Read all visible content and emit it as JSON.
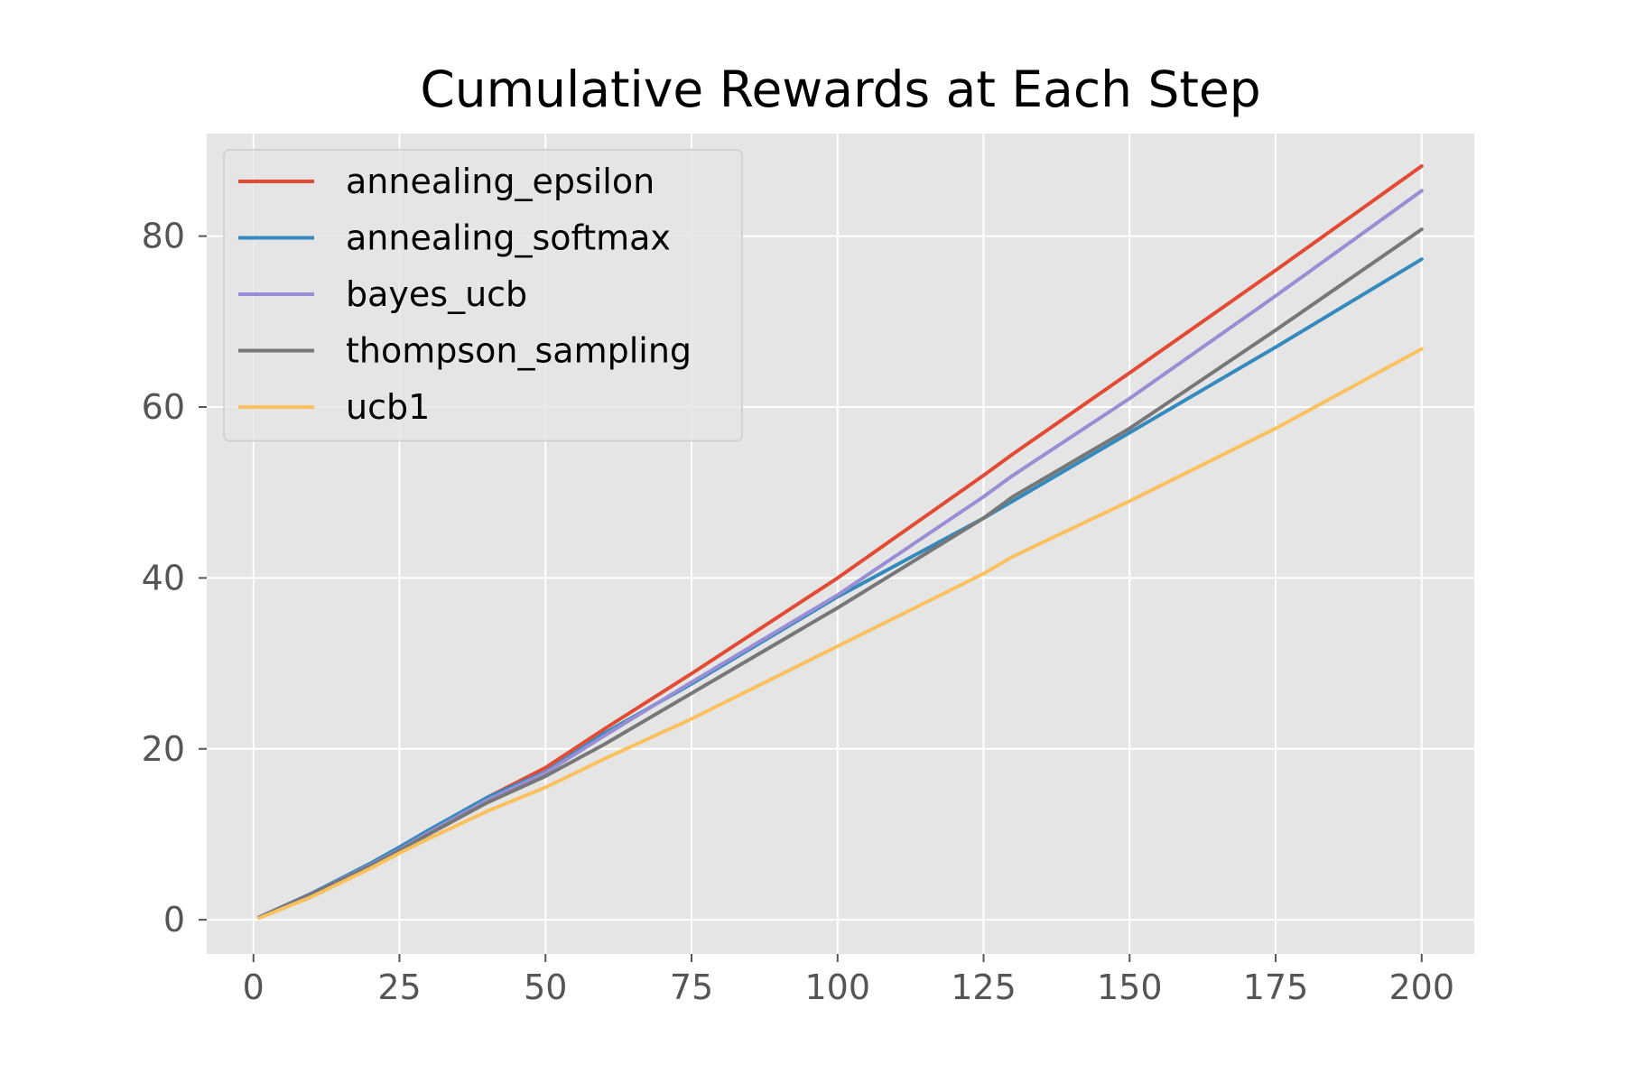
{
  "chart_data": {
    "type": "line",
    "title": "Cumulative Rewards at Each Step",
    "xlabel": "",
    "ylabel": "",
    "xlim": [
      -8,
      209
    ],
    "ylim": [
      -4,
      92
    ],
    "xticks": [
      0,
      25,
      50,
      75,
      100,
      125,
      150,
      175,
      200
    ],
    "xtick_labels": [
      "0",
      "25",
      "50",
      "75",
      "100",
      "125",
      "150",
      "175",
      "200"
    ],
    "yticks": [
      0,
      20,
      40,
      60,
      80
    ],
    "ytick_labels": [
      "0",
      "20",
      "40",
      "60",
      "80"
    ],
    "grid": true,
    "legend_position": "top-left",
    "x": [
      1,
      10,
      20,
      25,
      30,
      40,
      50,
      60,
      75,
      100,
      125,
      130,
      150,
      175,
      200
    ],
    "series": [
      {
        "name": "annealing_epsilon",
        "color": "#E24A33",
        "values": [
          0.3,
          3.1,
          6.5,
          8.3,
          10.3,
          14.3,
          17.8,
          22.3,
          28.8,
          40.0,
          52.0,
          54.5,
          64.0,
          76.0,
          88.2
        ]
      },
      {
        "name": "annealing_softmax",
        "color": "#348ABD",
        "values": [
          0.3,
          3.1,
          6.6,
          8.5,
          10.5,
          14.3,
          17.3,
          21.8,
          27.6,
          37.8,
          47.0,
          49.0,
          57.0,
          67.0,
          77.3
        ]
      },
      {
        "name": "bayes_ucb",
        "color": "#988ED5",
        "values": [
          0.3,
          3.0,
          6.4,
          8.2,
          10.2,
          14.0,
          17.2,
          21.5,
          27.8,
          38.0,
          49.5,
          52.0,
          61.0,
          73.0,
          85.3
        ]
      },
      {
        "name": "thompson_sampling",
        "color": "#777777",
        "values": [
          0.3,
          3.0,
          6.3,
          8.1,
          10.0,
          13.7,
          16.8,
          20.5,
          26.5,
          36.5,
          47.0,
          49.5,
          57.5,
          69.0,
          80.8
        ]
      },
      {
        "name": "ucb1",
        "color": "#FBC15E",
        "values": [
          0.2,
          2.7,
          6.0,
          7.8,
          9.5,
          12.7,
          15.5,
          18.8,
          23.5,
          32.0,
          40.5,
          42.5,
          49.0,
          57.5,
          66.8
        ]
      }
    ]
  }
}
